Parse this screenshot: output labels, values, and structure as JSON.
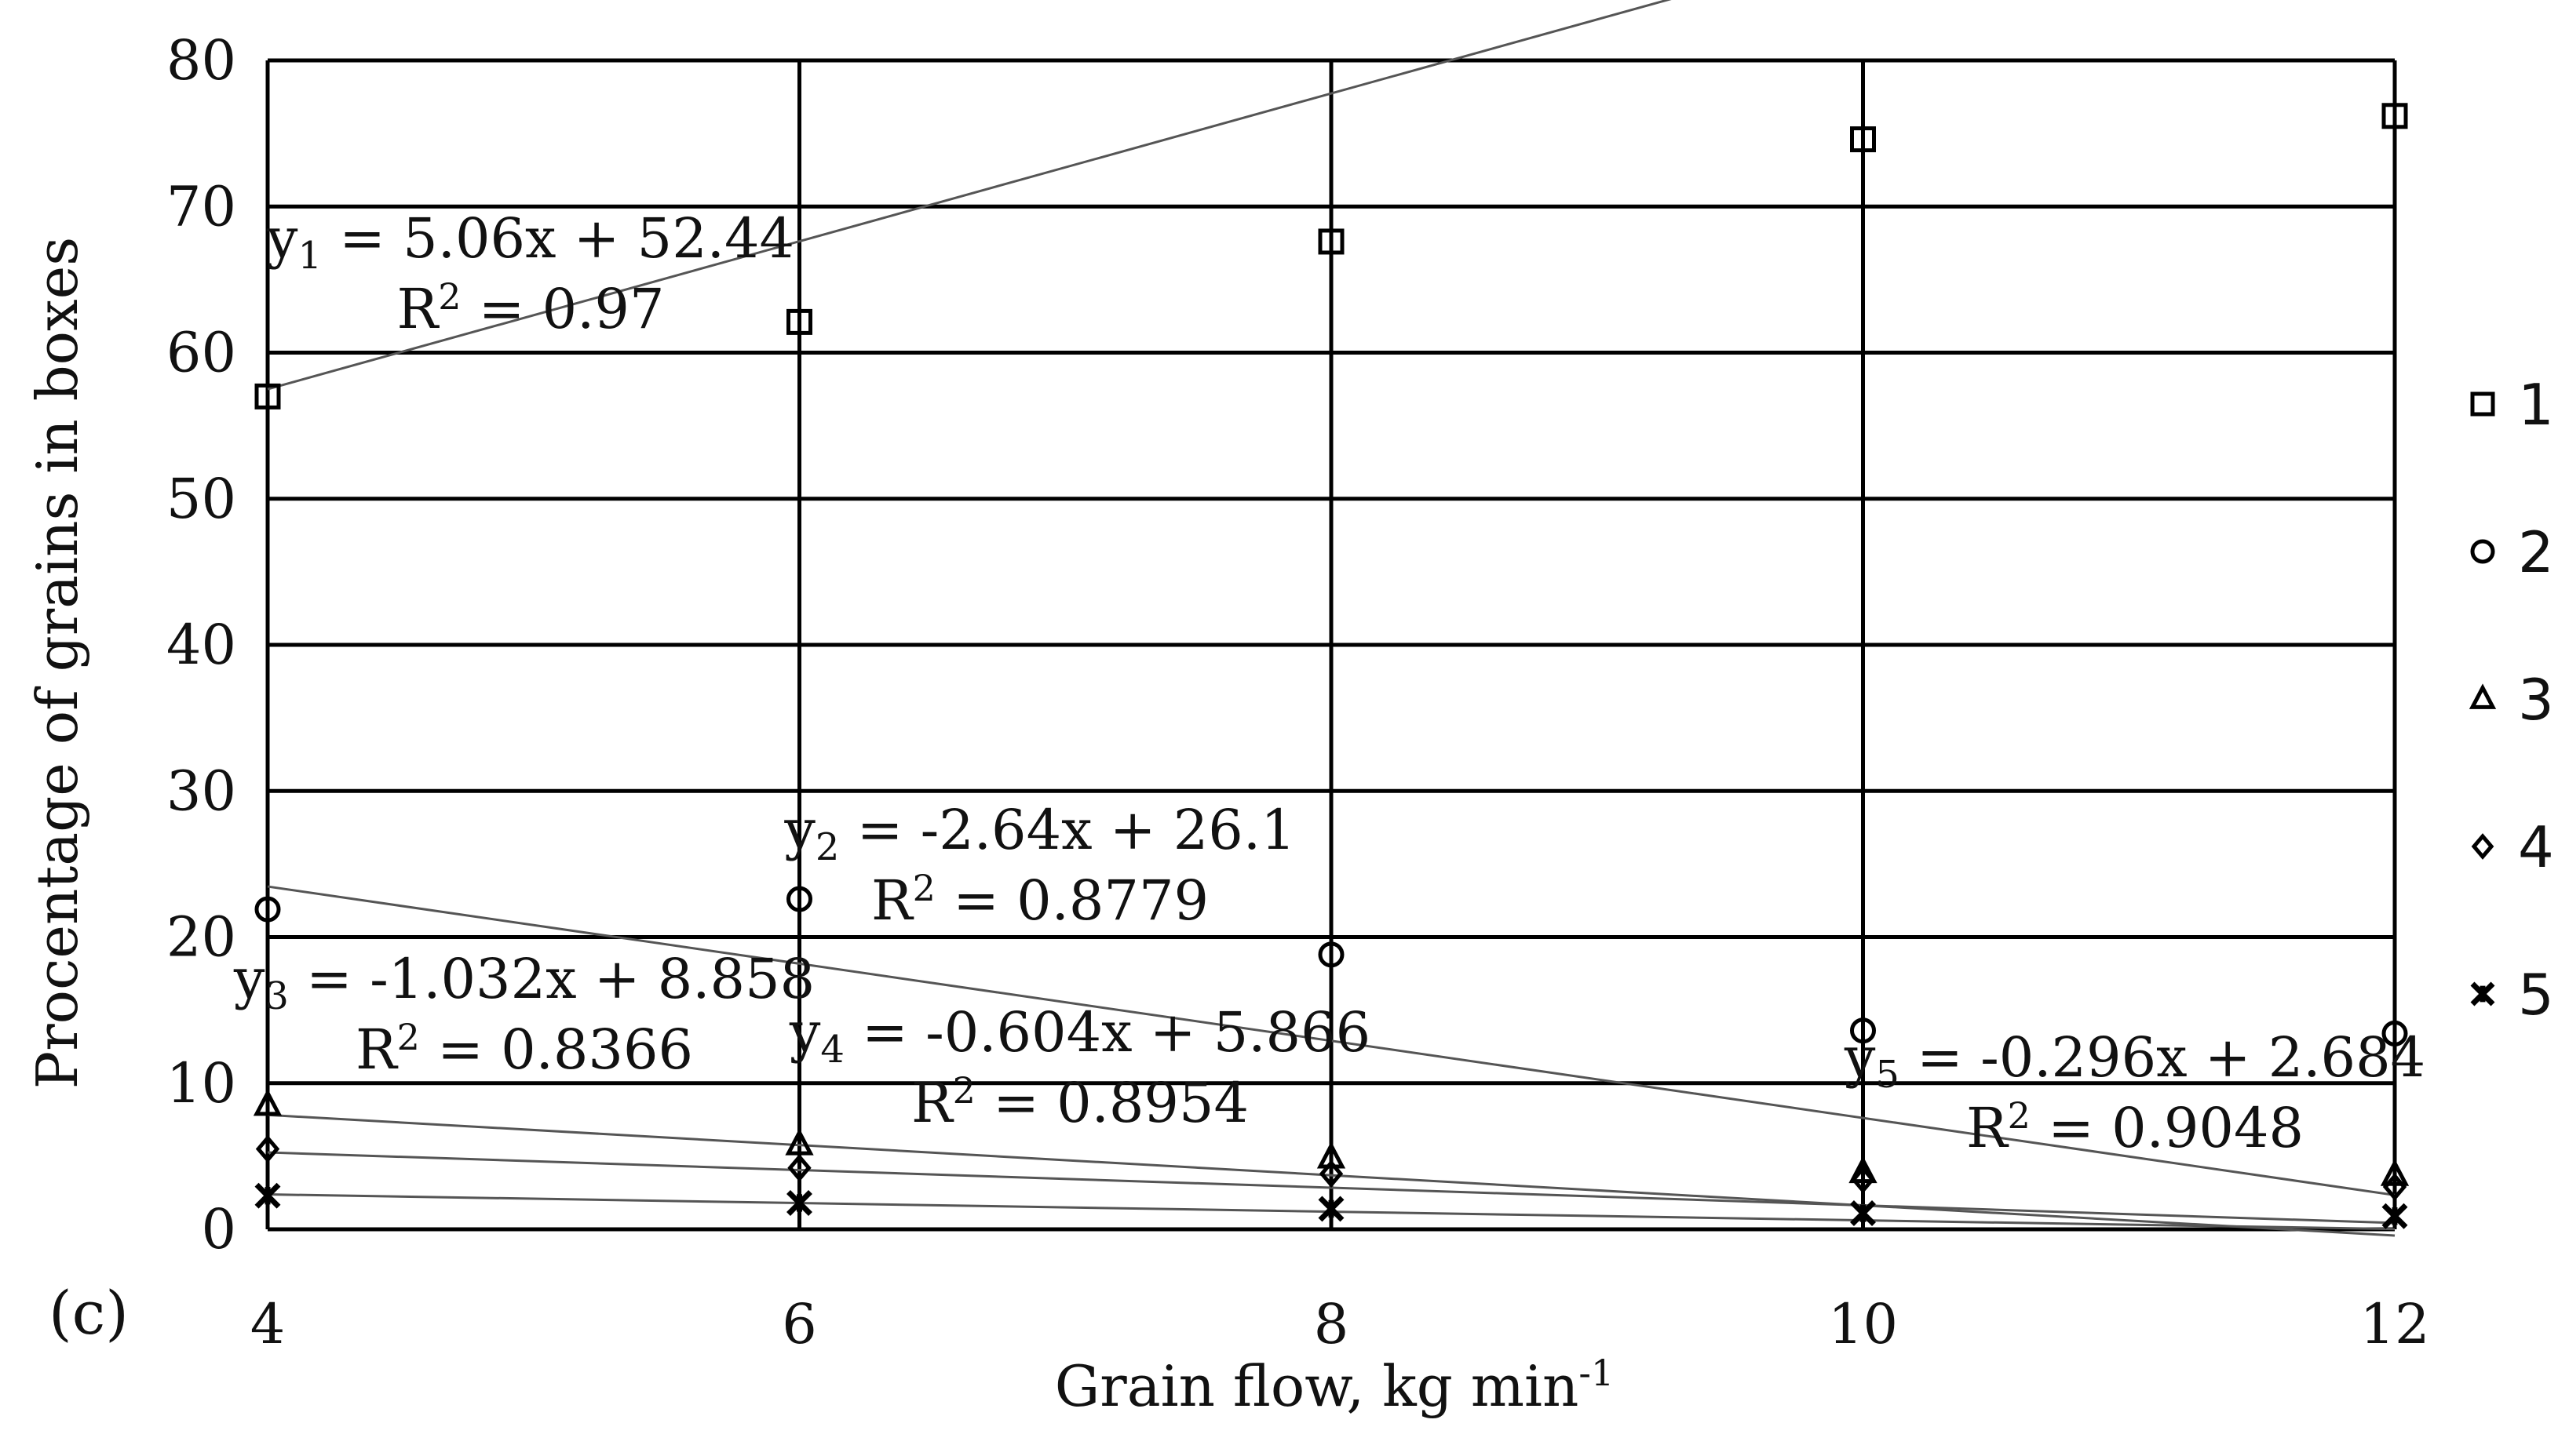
{
  "chart_data": {
    "type": "scatter",
    "panel_label": "(c)",
    "xlabel": "Grain flow, kg min",
    "xlabel_sup": "-1",
    "ylabel": "Procentage of grains in boxes",
    "x": [
      4,
      6,
      8,
      10,
      12
    ],
    "xticks": [
      "4",
      "6",
      "8",
      "10",
      "12"
    ],
    "xlim": [
      4,
      12
    ],
    "yticks": [
      "0",
      "10",
      "20",
      "30",
      "40",
      "50",
      "60",
      "70",
      "80"
    ],
    "ylim": [
      0,
      80
    ],
    "grid": true,
    "legend_position": "right",
    "series": [
      {
        "name": "1",
        "marker": "square",
        "values": [
          57.0,
          62.1,
          67.6,
          74.6,
          76.2
        ],
        "fit": {
          "sub": "1",
          "slope": 5.06,
          "intercept": 52.44,
          "equation_lhs": "y",
          "equation_rhs": " = 5.06x + 52.44",
          "r2_label": "R",
          "r2_value": " = 0.97"
        }
      },
      {
        "name": "2",
        "marker": "circle",
        "values": [
          21.9,
          22.6,
          18.8,
          13.6,
          13.4
        ],
        "fit": {
          "sub": "2",
          "slope": -2.64,
          "intercept": 26.1,
          "equation_lhs": "y",
          "equation_rhs": " = -2.64x + 26.1",
          "r2_label": "R",
          "r2_value": " = 0.8779"
        }
      },
      {
        "name": "3",
        "marker": "triangle",
        "values": [
          8.5,
          5.8,
          4.9,
          3.9,
          3.7
        ],
        "fit": {
          "sub": "3",
          "slope": -1.032,
          "intercept": 8.858,
          "equation_lhs": "y",
          "equation_rhs": " = -1.032x + 8.858",
          "r2_label": "R",
          "r2_value": " = 0.8366"
        }
      },
      {
        "name": "4",
        "marker": "diamond",
        "values": [
          5.5,
          4.2,
          3.8,
          3.4,
          2.9
        ],
        "fit": {
          "sub": "4",
          "slope": -0.604,
          "intercept": 5.866,
          "equation_lhs": "y",
          "equation_rhs": " = -0.604x + 5.866",
          "r2_label": "R",
          "r2_value": " = 0.8954"
        }
      },
      {
        "name": "5",
        "marker": "asterisk",
        "values": [
          2.3,
          1.8,
          1.4,
          1.1,
          0.9
        ],
        "fit": {
          "sub": "5",
          "slope": -0.296,
          "intercept": 2.684,
          "equation_lhs": "y",
          "equation_rhs": " = -0.296x + 2.684",
          "r2_label": "R",
          "r2_value": " = 0.9048"
        }
      }
    ],
    "r2_sup": "2"
  }
}
